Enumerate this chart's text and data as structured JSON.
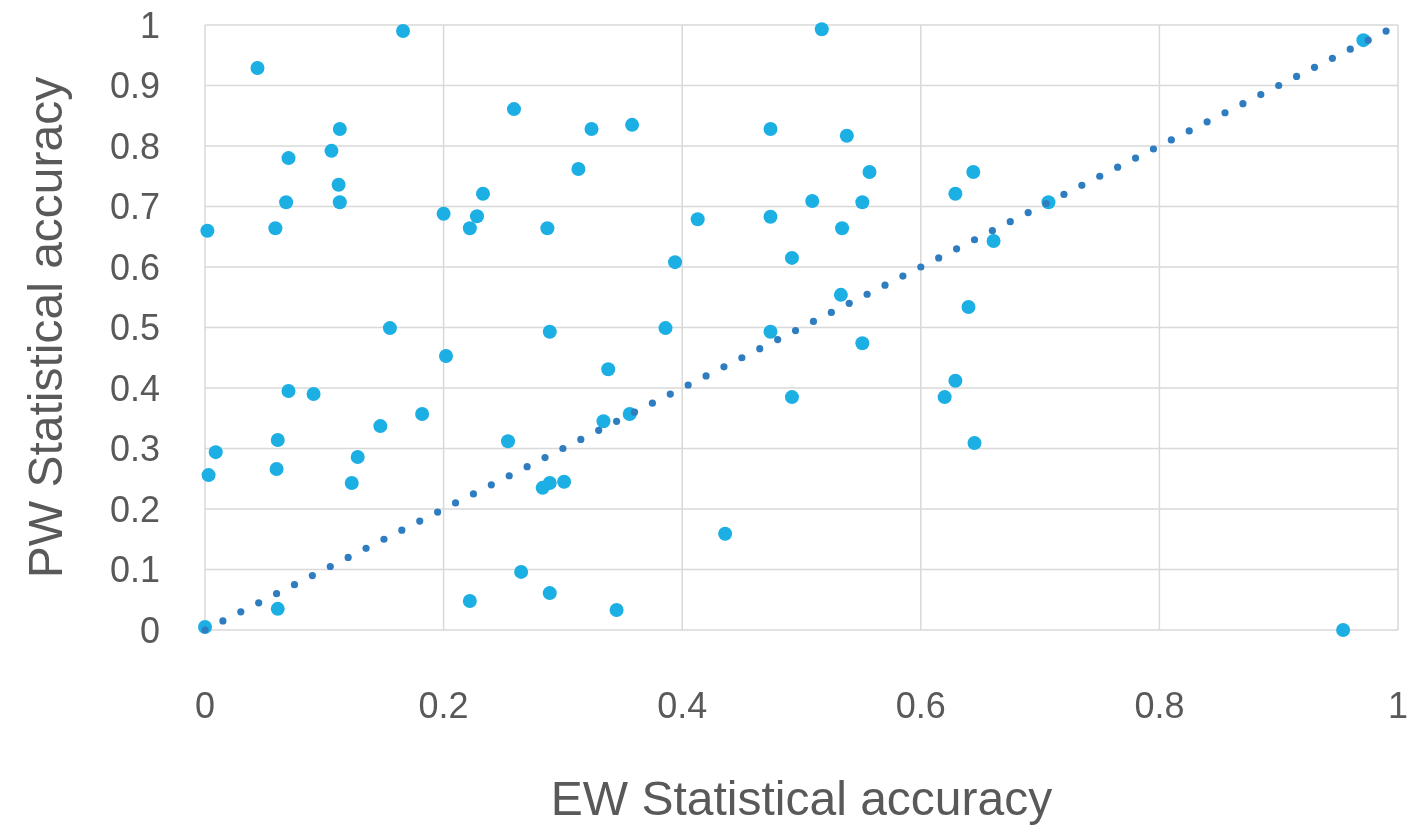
{
  "chart_data": {
    "type": "scatter",
    "xlabel": "EW Statistical accuracy",
    "ylabel": "PW Statistical accuracy",
    "xlim": [
      0,
      1
    ],
    "ylim": [
      0,
      1
    ],
    "xticks": [
      0,
      0.2,
      0.4,
      0.6,
      0.8,
      1
    ],
    "yticks": [
      0,
      0.1,
      0.2,
      0.3,
      0.4,
      0.5,
      0.6,
      0.7,
      0.8,
      0.9,
      1
    ],
    "grid": true,
    "marker": "circle",
    "series": [
      {
        "color": "#1cafe4",
        "x": [
          0.044,
          0.166,
          0.002,
          0,
          0.003,
          0.009,
          0.07,
          0.068,
          0.059,
          0.07,
          0.061,
          0.06,
          0.061,
          0.091,
          0.113,
          0.106,
          0.112,
          0.113,
          0.155,
          0.147,
          0.128,
          0.123,
          0.182,
          0.2,
          0.202,
          0.222,
          0.228,
          0.233,
          0.222,
          0.259,
          0.287,
          0.289,
          0.254,
          0.265,
          0.289,
          0.283,
          0.289,
          0.301,
          0.313,
          0.324,
          0.358,
          0.334,
          0.338,
          0.356,
          0.345,
          0.386,
          0.394,
          0.413,
          0.436,
          0.474,
          0.474,
          0.474,
          0.492,
          0.492,
          0.509,
          0.517,
          0.538,
          0.534,
          0.533,
          0.557,
          0.551,
          0.551,
          0.629,
          0.644,
          0.64,
          0.629,
          0.62,
          0.645,
          0.661,
          0.707,
          0.954,
          0.971
        ],
        "values": [
          0.929,
          0.99,
          0.66,
          0.005,
          0.256,
          0.294,
          0.78,
          0.707,
          0.664,
          0.395,
          0.314,
          0.266,
          0.035,
          0.39,
          0.828,
          0.792,
          0.736,
          0.707,
          0.499,
          0.337,
          0.286,
          0.243,
          0.357,
          0.688,
          0.453,
          0.664,
          0.684,
          0.721,
          0.048,
          0.861,
          0.664,
          0.493,
          0.312,
          0.096,
          0.061,
          0.235,
          0.243,
          0.245,
          0.762,
          0.828,
          0.835,
          0.345,
          0.431,
          0.357,
          0.033,
          0.499,
          0.608,
          0.679,
          0.159,
          0.828,
          0.683,
          0.493,
          0.615,
          0.385,
          0.709,
          0.993,
          0.817,
          0.664,
          0.554,
          0.757,
          0.707,
          0.474,
          0.721,
          0.757,
          0.534,
          0.412,
          0.385,
          0.309,
          0.643,
          0.707,
          0,
          0.975
        ]
      },
      {
        "color": "#2e7dc0",
        "x": [
          0,
          0.015,
          0.03,
          0.045,
          0.06,
          0.075,
          0.09,
          0.105,
          0.12,
          0.135,
          0.15,
          0.165,
          0.18,
          0.195,
          0.21,
          0.225,
          0.24,
          0.255,
          0.27,
          0.285,
          0.3,
          0.315,
          0.33,
          0.345,
          0.36,
          0.375,
          0.39,
          0.405,
          0.42,
          0.435,
          0.45,
          0.465,
          0.48,
          0.495,
          0.51,
          0.525,
          0.54,
          0.555,
          0.57,
          0.585,
          0.6,
          0.615,
          0.63,
          0.645,
          0.66,
          0.675,
          0.69,
          0.705,
          0.72,
          0.735,
          0.75,
          0.765,
          0.78,
          0.795,
          0.81,
          0.825,
          0.84,
          0.855,
          0.87,
          0.885,
          0.9,
          0.915,
          0.93,
          0.945,
          0.96,
          0.975,
          0.99
        ],
        "values": [
          0,
          0.015,
          0.03,
          0.045,
          0.06,
          0.075,
          0.09,
          0.105,
          0.12,
          0.135,
          0.15,
          0.165,
          0.18,
          0.195,
          0.21,
          0.225,
          0.24,
          0.255,
          0.27,
          0.285,
          0.3,
          0.315,
          0.33,
          0.345,
          0.36,
          0.375,
          0.39,
          0.405,
          0.42,
          0.435,
          0.45,
          0.465,
          0.48,
          0.495,
          0.51,
          0.525,
          0.54,
          0.555,
          0.57,
          0.585,
          0.6,
          0.615,
          0.63,
          0.645,
          0.66,
          0.675,
          0.69,
          0.705,
          0.72,
          0.735,
          0.75,
          0.765,
          0.78,
          0.795,
          0.81,
          0.825,
          0.84,
          0.855,
          0.87,
          0.885,
          0.9,
          0.915,
          0.93,
          0.945,
          0.96,
          0.975,
          0.99
        ]
      }
    ]
  }
}
